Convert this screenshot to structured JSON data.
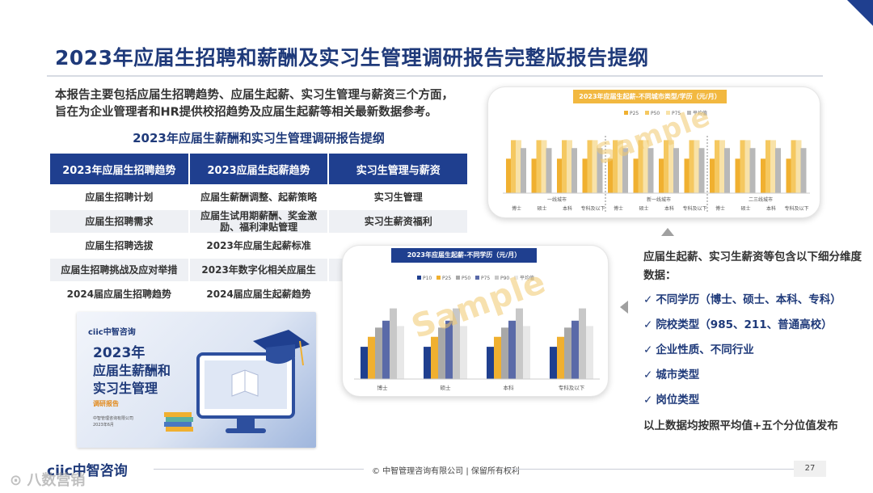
{
  "header": {
    "title": "2023年应届生招聘和薪酬及实习生管理调研报告完整版报告提纲"
  },
  "intro": {
    "line1": "本报告主要包括应届生招聘趋势、应届生起薪、实习生管理与薪资三个方面，",
    "line2": "旨在为企业管理者和HR提供校招趋势及应届生起薪等相关最新数据参考。"
  },
  "outline": {
    "subtitle": "2023年应届生薪酬和实习生管理调研报告提纲",
    "columns": [
      "2023年应届生招聘趋势",
      "2023应届生起薪趋势",
      "实习生管理与薪资"
    ],
    "rows": [
      [
        "应届生招聘计划",
        "应届生薪酬调整、起薪策略",
        "实习生管理"
      ],
      [
        "应届生招聘需求",
        "应届生试用期薪酬、奖金激励、福利津贴管理",
        "实习生薪资福利"
      ],
      [
        "应届生招聘选拔",
        "2023年应届生起薪标准",
        ""
      ],
      [
        "应届生招聘挑战及应对举措",
        "2023年数字化相关应届生",
        ""
      ],
      [
        "2024届应届生招聘趋势",
        "2024届应届生起薪趋势",
        ""
      ]
    ]
  },
  "cover": {
    "logo": "ciic中智咨询",
    "title_line1": "2023年",
    "title_line2": "应届生薪酬和",
    "title_line3": "实习生管理",
    "tag": "调研报告",
    "org": "中智管理咨询有限公司",
    "date": "2023年6月"
  },
  "chart1": {
    "title": "2023年应届生起薪-不同城市类型/学历（元/月）",
    "watermark": "Sample",
    "legend": [
      "P25",
      "P50",
      "P75",
      "平均值"
    ],
    "groups": [
      "一线城市",
      "新一线城市",
      "二三线城市"
    ],
    "colors": {
      "p25": "#f0b030",
      "p50": "#f5c860",
      "p75": "#f8e2a8",
      "avg": "#b8b8b8"
    }
  },
  "chart2": {
    "title": "2023年应届生起薪-不同学历（元/月）",
    "watermark": "Sample",
    "legend": [
      "P10",
      "P25",
      "P50",
      "P75",
      "P90",
      "平均值"
    ],
    "colors": {
      "p10": "#1f3f8f",
      "p25": "#f0b030",
      "p50": "#a8a8a8",
      "p75": "#5a6aa8",
      "p90": "#c8c8c8",
      "avg": "#e8e8e8"
    }
  },
  "chart_data": [
    {
      "type": "bar",
      "title": "2023年应届生起薪-不同城市类型/学历（元/月）",
      "categories": [
        "博士",
        "硕士",
        "本科",
        "专科及以下",
        "博士",
        "硕士",
        "本科",
        "专科及以下",
        "博士",
        "硕士",
        "本科",
        "专科及以下"
      ],
      "groups": [
        "一线城市",
        "新一线城市",
        "二三线城市"
      ],
      "series": [
        {
          "name": "P25",
          "values": [
            0.52,
            0.52,
            0.52,
            0.52,
            0.52,
            0.52,
            0.52,
            0.52,
            0.52,
            0.52,
            0.52,
            0.52
          ]
        },
        {
          "name": "P50",
          "values": [
            0.8,
            0.8,
            0.8,
            0.8,
            0.8,
            0.8,
            0.8,
            0.8,
            0.8,
            0.8,
            0.8,
            0.8
          ]
        },
        {
          "name": "P75",
          "values": [
            0.8,
            0.8,
            0.8,
            0.8,
            0.8,
            0.8,
            0.8,
            0.8,
            0.8,
            0.8,
            0.8,
            0.8
          ]
        },
        {
          "name": "平均值",
          "values": [
            0.68,
            0.68,
            0.68,
            0.68,
            0.68,
            0.68,
            0.68,
            0.68,
            0.68,
            0.68,
            0.68,
            0.68
          ]
        }
      ],
      "ylim": [
        0,
        1
      ],
      "legend": "top"
    },
    {
      "type": "bar",
      "title": "2023年应届生起薪-不同学历（元/月）",
      "categories": [
        "博士",
        "硕士",
        "本科",
        "专科及以下"
      ],
      "series": [
        {
          "name": "P10",
          "values": [
            0.42,
            0.42,
            0.42,
            0.42
          ]
        },
        {
          "name": "P25",
          "values": [
            0.55,
            0.55,
            0.55,
            0.55
          ]
        },
        {
          "name": "P50",
          "values": [
            0.67,
            0.67,
            0.67,
            0.67
          ]
        },
        {
          "name": "P75",
          "values": [
            0.76,
            0.76,
            0.76,
            0.76
          ]
        },
        {
          "name": "P90",
          "values": [
            0.92,
            0.92,
            0.92,
            0.92
          ]
        },
        {
          "name": "平均值",
          "values": [
            0.69,
            0.69,
            0.69,
            0.69
          ]
        }
      ],
      "ylim": [
        0,
        1
      ],
      "legend": "top"
    }
  ],
  "side": {
    "intro": "应届生起薪、实习生薪资等包含以下细分维度数据：",
    "check_glyph": "✓",
    "bullets": [
      "不同学历（博士、硕士、本科、专科）",
      "院校类型（985、211、普通高校）",
      "企业性质、不同行业",
      "城市类型",
      "岗位类型"
    ],
    "closing": "以上数据均按照平均值+五个分位值发布"
  },
  "footer": {
    "logo": "ciic中智咨询",
    "copyright": "© 中智管理咨询有限公司 | 保留所有权利",
    "page": "27",
    "watermark": "⊙ 八数营销"
  }
}
